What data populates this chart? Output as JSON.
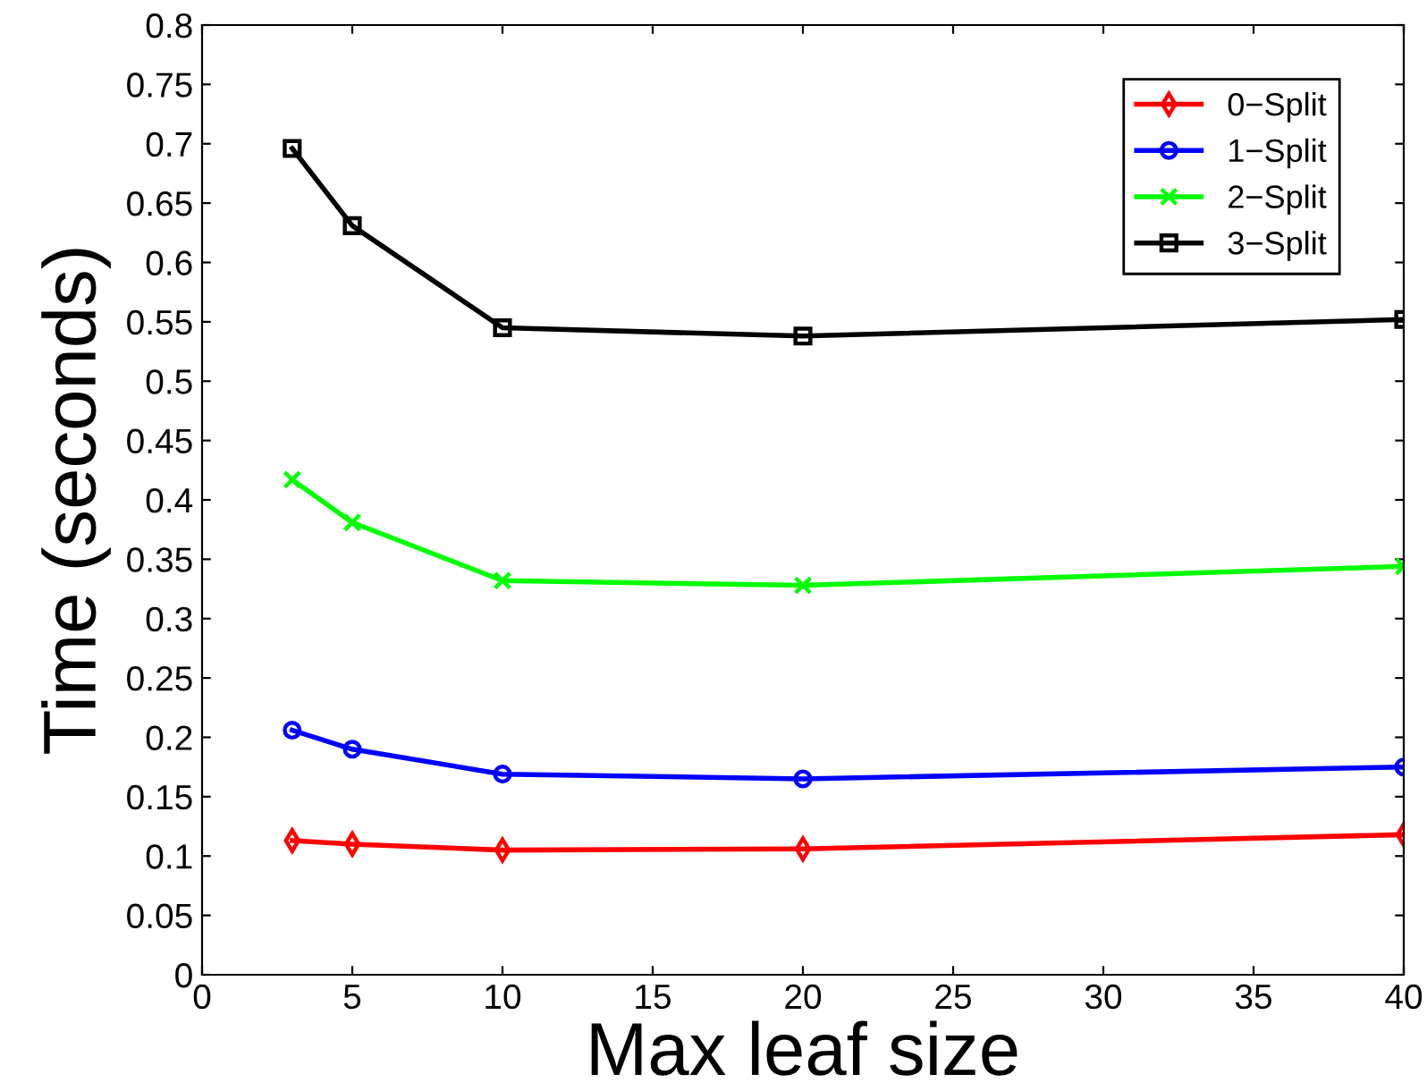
{
  "chart_data": {
    "type": "line",
    "xlabel": "Max leaf size",
    "ylabel": "Time (seconds)",
    "x": [
      3,
      5,
      10,
      20,
      40
    ],
    "series": [
      {
        "name": "0−Split",
        "color": "#ff0000",
        "marker": "diamond",
        "values": [
          0.113,
          0.11,
          0.105,
          0.106,
          0.118
        ]
      },
      {
        "name": "1−Split",
        "color": "#0000ff",
        "marker": "circle",
        "values": [
          0.206,
          0.19,
          0.169,
          0.165,
          0.175
        ]
      },
      {
        "name": "2−Split",
        "color": "#00ff00",
        "marker": "cross",
        "values": [
          0.417,
          0.381,
          0.332,
          0.328,
          0.344
        ]
      },
      {
        "name": "3−Split",
        "color": "#000000",
        "marker": "square",
        "values": [
          0.696,
          0.631,
          0.545,
          0.538,
          0.552
        ]
      }
    ],
    "xlim": [
      0,
      40
    ],
    "xticks": [
      0,
      5,
      10,
      15,
      20,
      25,
      30,
      35,
      40
    ],
    "ylim": [
      0,
      0.8
    ],
    "yticks": [
      0,
      0.05,
      0.1,
      0.15,
      0.2,
      0.25,
      0.3,
      0.35,
      0.4,
      0.45,
      0.5,
      0.55,
      0.6,
      0.65,
      0.7,
      0.75,
      0.8
    ],
    "grid": false,
    "legend": "top right",
    "line_style": "solid"
  }
}
